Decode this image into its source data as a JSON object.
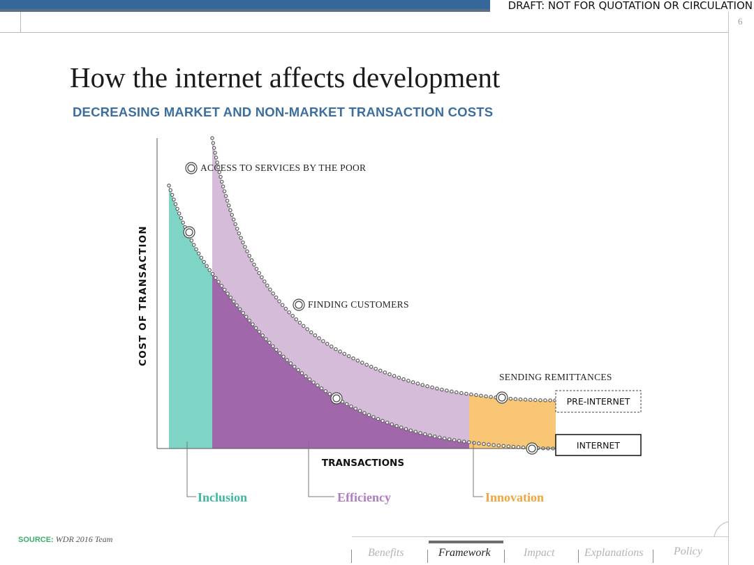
{
  "header": {
    "draft_notice": "DRAFT: NOT FOR QUOTATION OR CIRCULATION",
    "page_number": "6"
  },
  "slide": {
    "title": "How the internet affects development",
    "subtitle": "DECREASING MARKET AND NON-MARKET TRANSACTION COSTS"
  },
  "diagram": {
    "y_axis_label": "COST OF TRANSACTION",
    "x_axis_label": "TRANSACTIONS",
    "annotations": {
      "access": "ACCESS TO SERVICES BY THE POOR",
      "finding": "FINDING CUSTOMERS",
      "remittances": "SENDING REMITTANCES"
    },
    "legend": {
      "pre_internet": "PRE-INTERNET",
      "internet": "INTERNET"
    },
    "categories": {
      "inclusion": "Inclusion",
      "efficiency": "Efficiency",
      "innovation": "Innovation"
    },
    "colors": {
      "inclusion": "#7fd5c5",
      "efficiency": "#a067aa",
      "pre_internet_band": "#d5bcd9",
      "innovation": "#f8c675",
      "inclusion_text": "#3fb7a0",
      "efficiency_text": "#b07cc0",
      "innovation_text": "#f0a63c"
    }
  },
  "footer": {
    "source_label": "SOURCE:",
    "source_value": "WDR 2016 Team"
  },
  "nav": {
    "items": [
      {
        "label": "Benefits",
        "active": false
      },
      {
        "label": "Framework",
        "active": true
      },
      {
        "label": "Impact",
        "active": false
      },
      {
        "label": "Explanations",
        "active": false
      },
      {
        "label": "Policy",
        "active": false
      }
    ]
  }
}
